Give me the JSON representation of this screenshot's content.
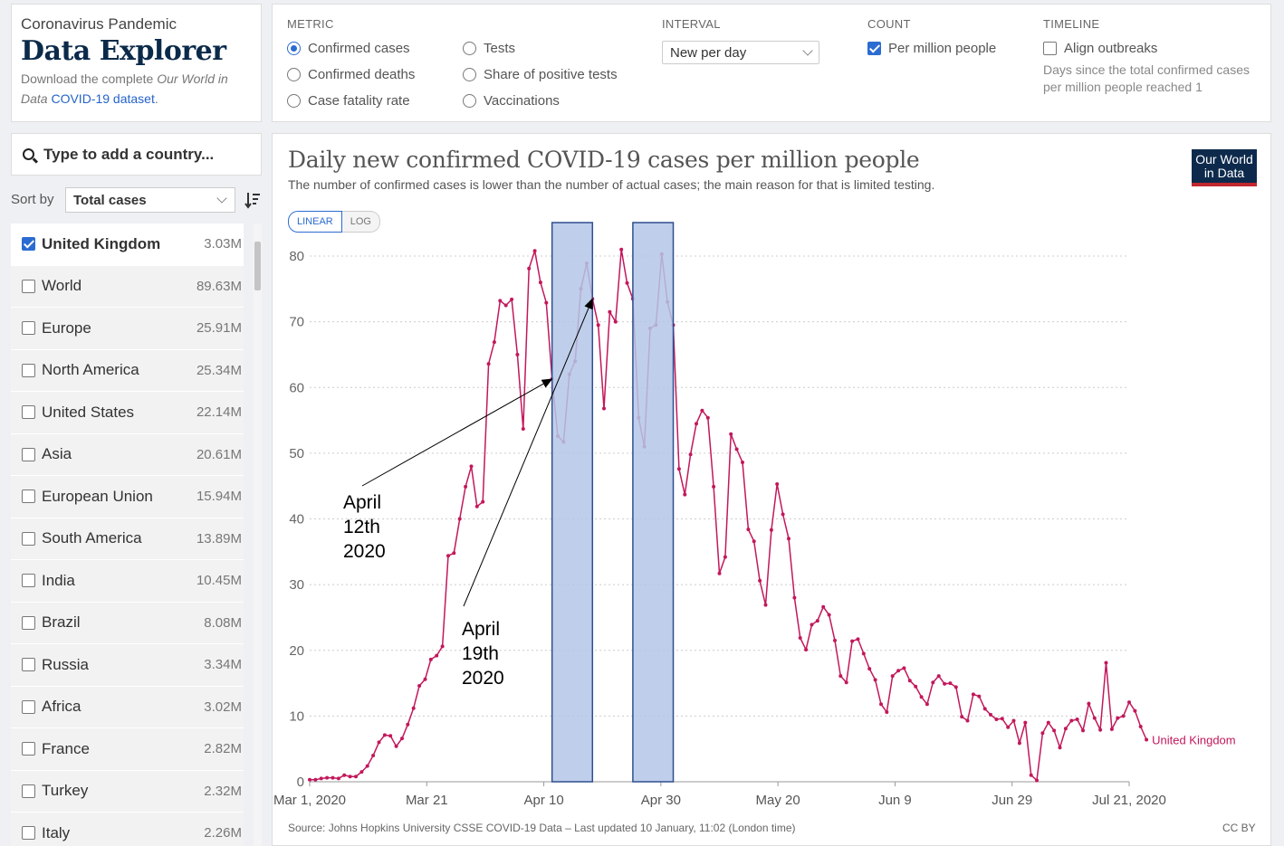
{
  "header": {
    "kicker": "Coronavirus Pandemic",
    "title": "Data Explorer",
    "desc_pre": "Download the complete ",
    "desc_italic": "Our World in Data",
    "desc_link": "COVID-19 dataset",
    "desc_post": "."
  },
  "controls": {
    "metric_heading": "METRIC",
    "metric_options": [
      {
        "label": "Confirmed cases",
        "selected": true
      },
      {
        "label": "Confirmed deaths",
        "selected": false
      },
      {
        "label": "Case fatality rate",
        "selected": false
      },
      {
        "label": "Tests",
        "selected": false
      },
      {
        "label": "Share of positive tests",
        "selected": false
      },
      {
        "label": "Vaccinations",
        "selected": false
      }
    ],
    "interval_heading": "INTERVAL",
    "interval_value": "New per day",
    "count_heading": "COUNT",
    "count_option": "Per million people",
    "timeline_heading": "TIMELINE",
    "timeline_option": "Align outbreaks",
    "timeline_note": "Days since the total confirmed cases per million people reached 1"
  },
  "search": {
    "placeholder": "Type to add a country..."
  },
  "sort": {
    "label": "Sort by",
    "value": "Total cases"
  },
  "countries": [
    {
      "name": "United Kingdom",
      "value": "3.03M",
      "selected": true
    },
    {
      "name": "World",
      "value": "89.63M",
      "selected": false
    },
    {
      "name": "Europe",
      "value": "25.91M",
      "selected": false
    },
    {
      "name": "North America",
      "value": "25.34M",
      "selected": false
    },
    {
      "name": "United States",
      "value": "22.14M",
      "selected": false
    },
    {
      "name": "Asia",
      "value": "20.61M",
      "selected": false
    },
    {
      "name": "European Union",
      "value": "15.94M",
      "selected": false
    },
    {
      "name": "South America",
      "value": "13.89M",
      "selected": false
    },
    {
      "name": "India",
      "value": "10.45M",
      "selected": false
    },
    {
      "name": "Brazil",
      "value": "8.08M",
      "selected": false
    },
    {
      "name": "Russia",
      "value": "3.34M",
      "selected": false
    },
    {
      "name": "Africa",
      "value": "3.02M",
      "selected": false
    },
    {
      "name": "France",
      "value": "2.82M",
      "selected": false
    },
    {
      "name": "Turkey",
      "value": "2.32M",
      "selected": false
    },
    {
      "name": "Italy",
      "value": "2.26M",
      "selected": false
    }
  ],
  "chart": {
    "scale_linear": "LINEAR",
    "scale_log": "LOG",
    "logo_line1": "Our World",
    "logo_line2": "in Data",
    "source": "Source: Johns Hopkins University CSSE COVID-19 Data – Last updated 10 January, 11:02 (London time)",
    "license": "CC BY"
  },
  "colors": {
    "series": "#c2185b",
    "highlight": "#b4c7e7",
    "highlight_border": "#2f4f8f",
    "accent": "#2b6cd1"
  },
  "chart_data": {
    "type": "line",
    "title": "Daily new confirmed COVID-19 cases per million people",
    "subtitle": "The number of confirmed cases is lower than the number of actual cases; the main reason for that is limited testing.",
    "scale": "linear",
    "x_start": "2020-03-01",
    "x_end": "2020-07-21",
    "x_tick_labels": [
      "Mar 1, 2020",
      "Mar 21",
      "Apr 10",
      "Apr 30",
      "May 20",
      "Jun 9",
      "Jun 29",
      "Jul 21, 2020"
    ],
    "ylim": [
      0,
      80
    ],
    "y_ticks": [
      0,
      10,
      20,
      30,
      40,
      50,
      60,
      70,
      80
    ],
    "grid": "horizontal dotted",
    "series": [
      {
        "name": "United Kingdom",
        "values": [
          0.3,
          0.3,
          0.5,
          0.6,
          0.6,
          0.5,
          1.0,
          0.8,
          0.8,
          1.5,
          2.4,
          4.0,
          6.0,
          7.1,
          7.0,
          5.4,
          6.6,
          8.7,
          11.2,
          14.6,
          15.6,
          18.6,
          19.2,
          20.6,
          34.4,
          34.8,
          40.0,
          44.9,
          48.0,
          41.9,
          42.6,
          63.6,
          66.9,
          73.2,
          72.5,
          73.4,
          65.0,
          53.7,
          78.1,
          80.8,
          76.0,
          72.9,
          61.3,
          52.6,
          51.7,
          62.0,
          64.0,
          75.0,
          78.9,
          73.5,
          69.5,
          56.8,
          71.5,
          70.0,
          81.0,
          75.9,
          73.5,
          55.4,
          51.0,
          69.0,
          69.5,
          80.3,
          73.0,
          69.5,
          47.6,
          43.7,
          49.8,
          54.5,
          56.5,
          55.4,
          44.9,
          31.7,
          34.2,
          52.9,
          50.6,
          48.6,
          38.4,
          36.6,
          30.6,
          26.9,
          38.3,
          45.3,
          40.7,
          37.0,
          28.0,
          21.9,
          20.1,
          23.9,
          24.5,
          26.6,
          25.4,
          21.5,
          16.1,
          15.1,
          21.4,
          21.7,
          19.5,
          17.2,
          15.5,
          11.8,
          10.6,
          16.1,
          16.9,
          17.3,
          15.4,
          14.5,
          12.9,
          11.8,
          15.1,
          16.1,
          14.9,
          15.0,
          14.4,
          9.9,
          9.3,
          13.3,
          13.0,
          11.1,
          10.2,
          9.5,
          9.6,
          8.3,
          9.3,
          5.9,
          9.0,
          1.0,
          0.2,
          7.4,
          9.0,
          7.8,
          5.2,
          8.1,
          9.3,
          9.5,
          7.8,
          11.9,
          9.7,
          7.9,
          18.1,
          8.0,
          9.7,
          10.0,
          12.1,
          10.8,
          8.4,
          6.4
        ]
      }
    ],
    "series_label": "United Kingdom",
    "highlights": [
      {
        "start": "2020-04-12",
        "end": "2020-04-19"
      },
      {
        "start": "2020-04-26",
        "end": "2020-05-03"
      }
    ],
    "annotations": [
      {
        "text": "April\n12th\n2020",
        "date": "2020-04-12"
      },
      {
        "text": "April\n19th\n2020",
        "date": "2020-04-19"
      }
    ]
  }
}
